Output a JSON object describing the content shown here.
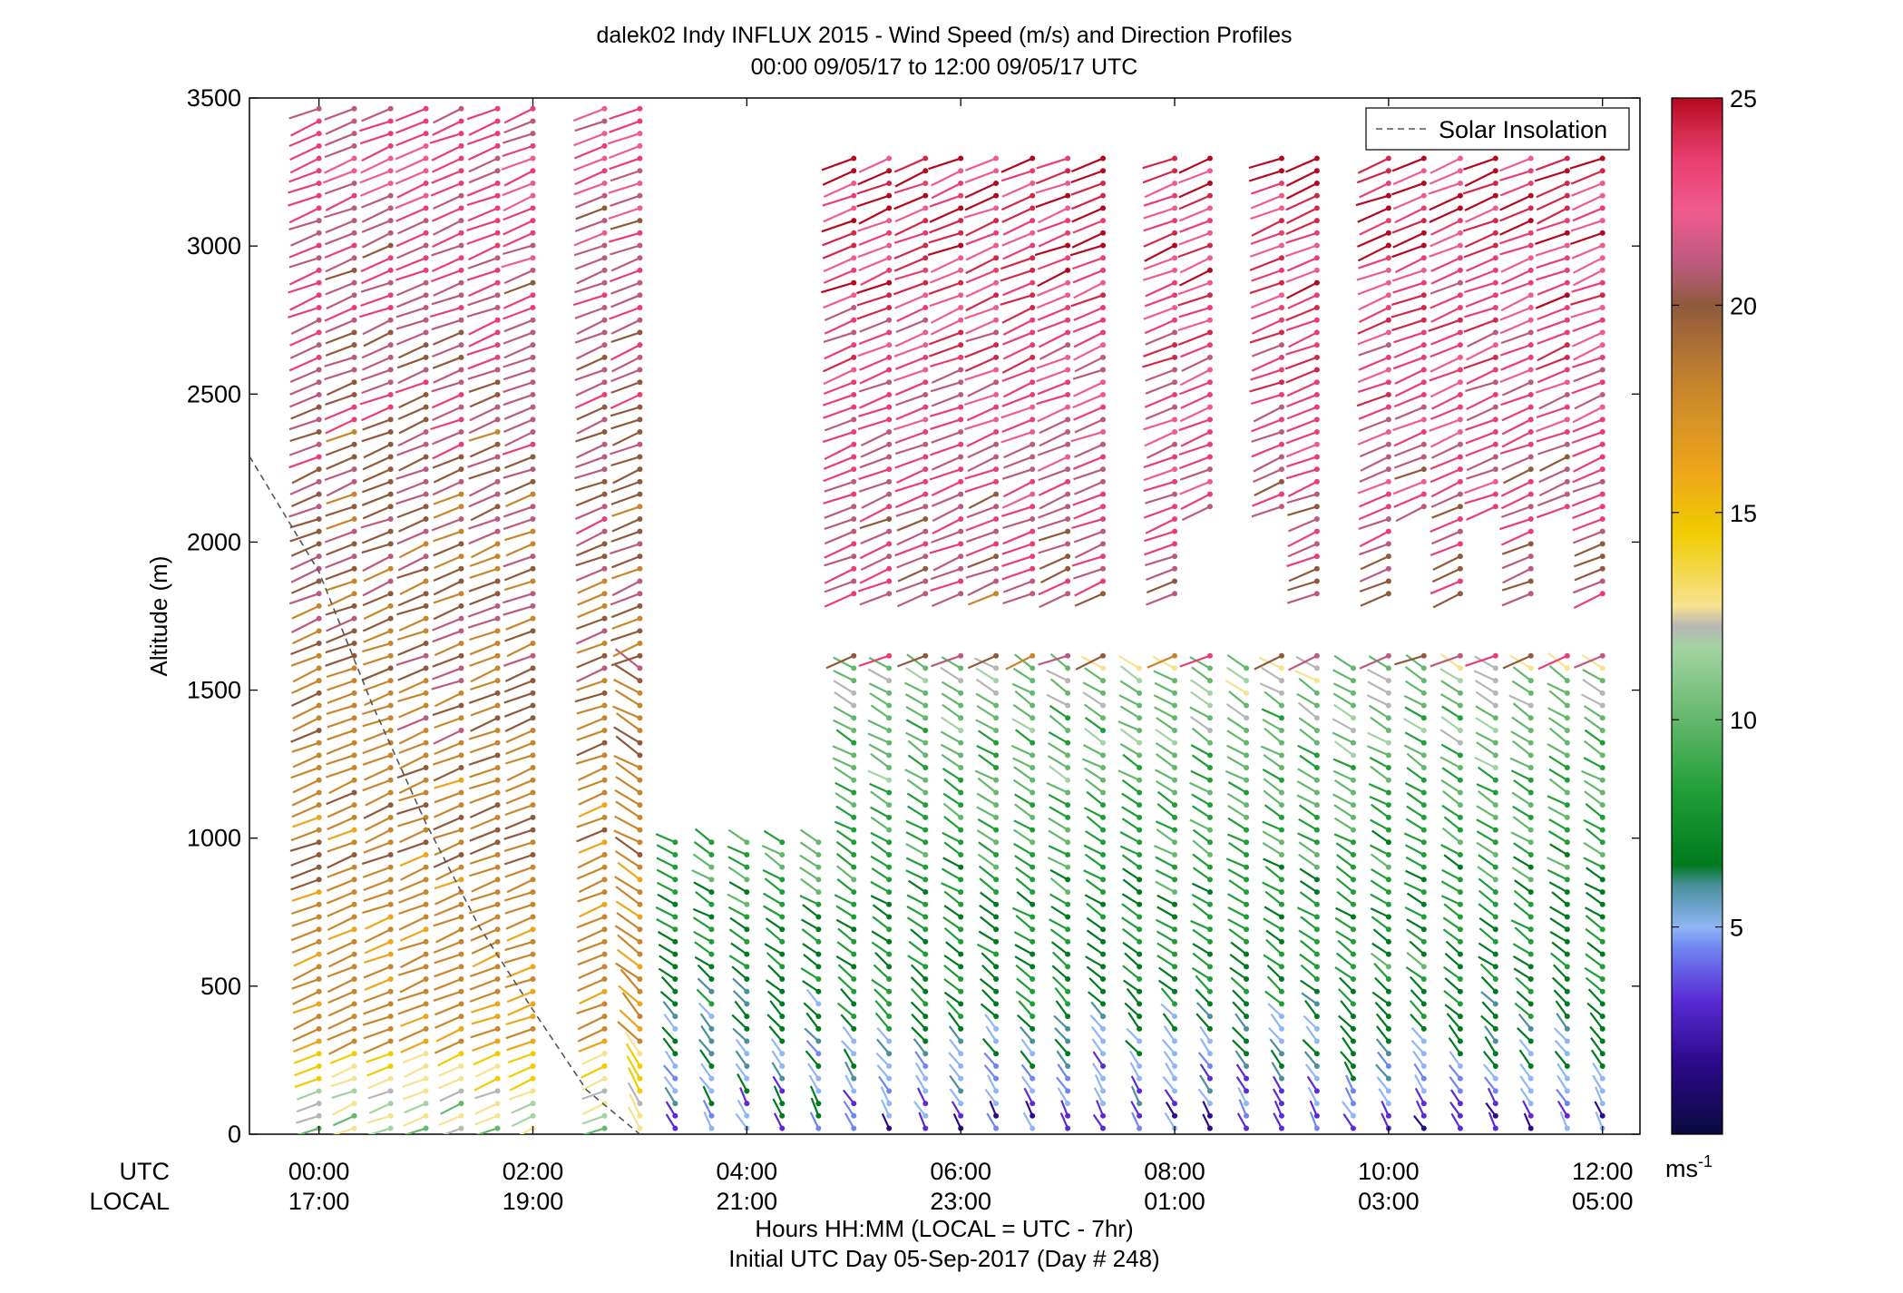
{
  "chart_data": {
    "type": "wind-barb-profile",
    "title": "dalek02 Indy INFLUX 2015 - Wind Speed (m/s) and Direction Profiles",
    "subtitle": "00:00 09/05/17 to 12:00 09/05/17  UTC",
    "xlabel": "Hours HH:MM  (LOCAL = UTC - 7hr)",
    "xlabel2": "Initial UTC Day 05-Sep-2017 (Day # 248)",
    "ylabel": "Altitude (m)",
    "ylim": [
      0,
      3500
    ],
    "xlim_hours_utc": [
      -0.65,
      12.35
    ],
    "yticks": [
      0,
      500,
      1000,
      1500,
      2000,
      2500,
      3000,
      3500
    ],
    "xrow_labels": [
      "UTC",
      "LOCAL"
    ],
    "xticks": [
      {
        "hour": 0,
        "utc": "00:00",
        "local": "17:00"
      },
      {
        "hour": 2,
        "utc": "02:00",
        "local": "19:00"
      },
      {
        "hour": 4,
        "utc": "04:00",
        "local": "21:00"
      },
      {
        "hour": 6,
        "utc": "06:00",
        "local": "23:00"
      },
      {
        "hour": 8,
        "utc": "08:00",
        "local": "01:00"
      },
      {
        "hour": 10,
        "utc": "10:00",
        "local": "03:00"
      },
      {
        "hour": 12,
        "utc": "12:00",
        "local": "05:00"
      }
    ],
    "colorbar": {
      "min": 0,
      "max": 25,
      "ticks": [
        5,
        10,
        15,
        20,
        25
      ],
      "unit_base": "ms",
      "unit_exp": "-1"
    },
    "legend": {
      "label": "Solar Insolation",
      "location": "top-right",
      "line_style": "dashed",
      "color": "#555555"
    },
    "solar_insolation": {
      "hours": [
        -0.65,
        0.0,
        0.5,
        1.0,
        1.5,
        2.0,
        2.5,
        3.0
      ],
      "altitude": [
        2290,
        1900,
        1450,
        1050,
        700,
        420,
        150,
        0
      ]
    },
    "profile_hours_approx": [
      0.0,
      0.33,
      0.67,
      1.0,
      1.33,
      1.67,
      2.0,
      2.67,
      3.0,
      3.33,
      3.67,
      4.0,
      4.33,
      4.67,
      5.0,
      5.33,
      5.67,
      6.0,
      6.33,
      6.67,
      7.0,
      7.33,
      7.67,
      8.0,
      8.33,
      8.67,
      9.0,
      9.33,
      9.67,
      10.0,
      10.33,
      10.67,
      11.0,
      11.33,
      11.67,
      12.0
    ],
    "speed_regimes_ms": [
      {
        "hours": [
          0,
          3
        ],
        "alt": [
          0,
          300
        ],
        "speed": [
          12,
          15
        ]
      },
      {
        "hours": [
          0,
          3
        ],
        "alt": [
          300,
          3500
        ],
        "speed": [
          18,
          23
        ]
      },
      {
        "hours": [
          3,
          4.7
        ],
        "alt": [
          0,
          1000
        ],
        "speed": [
          5,
          10
        ]
      },
      {
        "hours": [
          4.7,
          12
        ],
        "alt": [
          0,
          600
        ],
        "speed": [
          4,
          9
        ]
      },
      {
        "hours": [
          4.7,
          12
        ],
        "alt": [
          600,
          1600
        ],
        "speed": [
          8,
          12
        ]
      },
      {
        "hours": [
          4.7,
          12
        ],
        "alt": [
          1600,
          3500
        ],
        "speed": [
          21,
          25
        ]
      }
    ],
    "colors": {
      "palette": [
        "#0b0a3e",
        "#2c0a8c",
        "#5a2bd6",
        "#6e86f0",
        "#8fb6f5",
        "#4a8f9b",
        "#007a1e",
        "#1f9e36",
        "#63b86c",
        "#a3d3a2",
        "#b6b6b6",
        "#f7e38f",
        "#f0cc00",
        "#eda61a",
        "#c8862c",
        "#8f5a3c",
        "#bc5a7e",
        "#ea3e72",
        "#f05b8e",
        "#d22848",
        "#b5081f"
      ]
    }
  }
}
